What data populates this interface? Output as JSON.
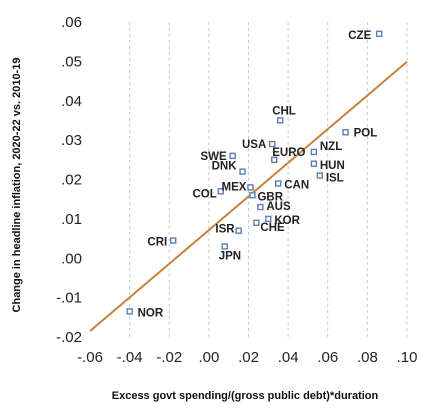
{
  "chart_data": {
    "type": "scatter",
    "xlabel": "Excess govt spending/(gross public debt)*duration",
    "ylabel": "Change in headline inflation, 2020-22 vs. 2010-19",
    "xlim": [
      -0.06,
      0.1
    ],
    "ylim": [
      -0.02,
      0.06
    ],
    "x_ticks": [
      -0.06,
      -0.04,
      -0.02,
      0.0,
      0.02,
      0.04,
      0.06,
      0.08,
      0.1
    ],
    "x_tick_labels": [
      "-.06",
      "-.04",
      "-.02",
      ".00",
      ".02",
      ".04",
      ".06",
      ".08",
      ".10"
    ],
    "y_ticks": [
      -0.02,
      -0.01,
      0.0,
      0.01,
      0.02,
      0.03,
      0.04,
      0.05,
      0.06
    ],
    "y_tick_labels": [
      "-.02",
      "-.01",
      ".00",
      ".01",
      ".02",
      ".03",
      ".04",
      ".05",
      ".06"
    ],
    "grid": "vertical dashed",
    "trend_line": {
      "x": [
        -0.06,
        0.1
      ],
      "y": [
        -0.0185,
        0.0499
      ],
      "color": "#c8823a"
    },
    "marker_color": "#5b7fb2",
    "points": [
      {
        "label": "CZE",
        "x": 0.086,
        "y": 0.057
      },
      {
        "label": "CHL",
        "x": 0.036,
        "y": 0.035
      },
      {
        "label": "POL",
        "x": 0.069,
        "y": 0.032
      },
      {
        "label": "USA",
        "x": 0.032,
        "y": 0.029
      },
      {
        "label": "NZL",
        "x": 0.053,
        "y": 0.027
      },
      {
        "label": "SWE",
        "x": 0.012,
        "y": 0.026
      },
      {
        "label": "EURO",
        "x": 0.033,
        "y": 0.025
      },
      {
        "label": "HUN",
        "x": 0.053,
        "y": 0.024
      },
      {
        "label": "DNK",
        "x": 0.017,
        "y": 0.022
      },
      {
        "label": "ISL",
        "x": 0.056,
        "y": 0.021
      },
      {
        "label": "CAN",
        "x": 0.035,
        "y": 0.019
      },
      {
        "label": "MEX",
        "x": 0.021,
        "y": 0.018
      },
      {
        "label": "COL",
        "x": 0.006,
        "y": 0.017
      },
      {
        "label": "GBR",
        "x": 0.022,
        "y": 0.016
      },
      {
        "label": "AUS",
        "x": 0.026,
        "y": 0.013
      },
      {
        "label": "KOR",
        "x": 0.03,
        "y": 0.01
      },
      {
        "label": "CHE",
        "x": 0.024,
        "y": 0.009
      },
      {
        "label": "ISR",
        "x": 0.015,
        "y": 0.007
      },
      {
        "label": "CRI",
        "x": -0.018,
        "y": 0.0045
      },
      {
        "label": "JPN",
        "x": 0.008,
        "y": 0.003
      },
      {
        "label": "NOR",
        "x": -0.04,
        "y": -0.0135
      }
    ]
  }
}
